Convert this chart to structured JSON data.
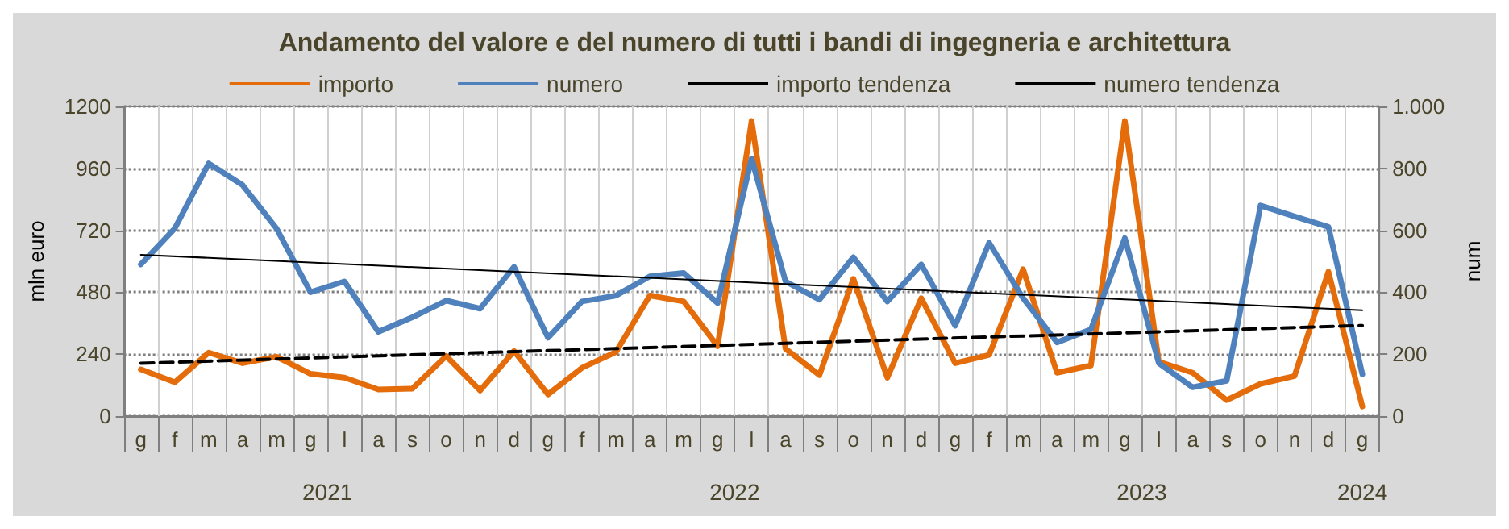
{
  "chart_data": {
    "type": "line",
    "title": "Andamento del valore e del numero di tutti i bandi di ingegneria e architettura",
    "categories": [
      "g",
      "f",
      "m",
      "a",
      "m",
      "g",
      "l",
      "a",
      "s",
      "o",
      "n",
      "d",
      "g",
      "f",
      "m",
      "a",
      "m",
      "g",
      "l",
      "a",
      "s",
      "o",
      "n",
      "d",
      "g",
      "f",
      "m",
      "a",
      "m",
      "g",
      "l",
      "a",
      "s",
      "o",
      "n",
      "d",
      "g"
    ],
    "series": [
      {
        "name": "importo",
        "color": "#e46c0a",
        "values": [
          181,
          131,
          246,
          205,
          230,
          164,
          149,
          103,
          106,
          233,
          99,
          252,
          84,
          187,
          248,
          467,
          444,
          271,
          1144,
          261,
          159,
          532,
          149,
          457,
          205,
          237,
          569,
          168,
          196,
          1144,
          211,
          168,
          62,
          125,
          155,
          560,
          37
        ]
      },
      {
        "name": "numero",
        "color": "#4f81bd",
        "axis": "y2",
        "values": [
          490,
          606,
          816,
          746,
          606,
          400,
          435,
          272,
          319,
          373,
          347,
          482,
          253,
          370,
          389,
          451,
          462,
          365,
          832,
          435,
          376,
          513,
          370,
          490,
          292,
          560,
          381,
          238,
          280,
          575,
          171,
          93,
          114,
          680,
          645,
          611,
          135
        ]
      },
      {
        "name": "importo tendenza",
        "color": "#000000",
        "line_style": "dashed",
        "values": [
          205,
          null,
          null,
          null,
          null,
          null,
          null,
          null,
          null,
          null,
          null,
          null,
          null,
          null,
          null,
          null,
          null,
          null,
          null,
          null,
          null,
          null,
          null,
          null,
          null,
          null,
          null,
          null,
          null,
          null,
          null,
          null,
          null,
          null,
          null,
          null,
          351
        ]
      },
      {
        "name": "numero tendenza",
        "color": "#000000",
        "line_style": "solid",
        "axis": "y2",
        "values": [
          521,
          null,
          null,
          null,
          null,
          null,
          null,
          null,
          null,
          null,
          null,
          null,
          null,
          null,
          null,
          null,
          null,
          null,
          null,
          null,
          null,
          null,
          null,
          null,
          null,
          null,
          null,
          null,
          null,
          null,
          null,
          null,
          null,
          null,
          null,
          null,
          342
        ]
      }
    ],
    "ylabel": "mln euro",
    "y2label": "num",
    "ylim": [
      0,
      1200
    ],
    "yticks": [
      0,
      240,
      480,
      720,
      960,
      1200
    ],
    "y2lim": [
      0,
      1000
    ],
    "y2ticks": [
      0,
      200,
      400,
      600,
      800,
      {
        "value": 1000,
        "label": "1.000"
      }
    ],
    "annotations": [
      "2021",
      "2022",
      "2023",
      "2024"
    ],
    "grid": true,
    "legend": "top",
    "marker": "none",
    "line_style": "solid"
  }
}
